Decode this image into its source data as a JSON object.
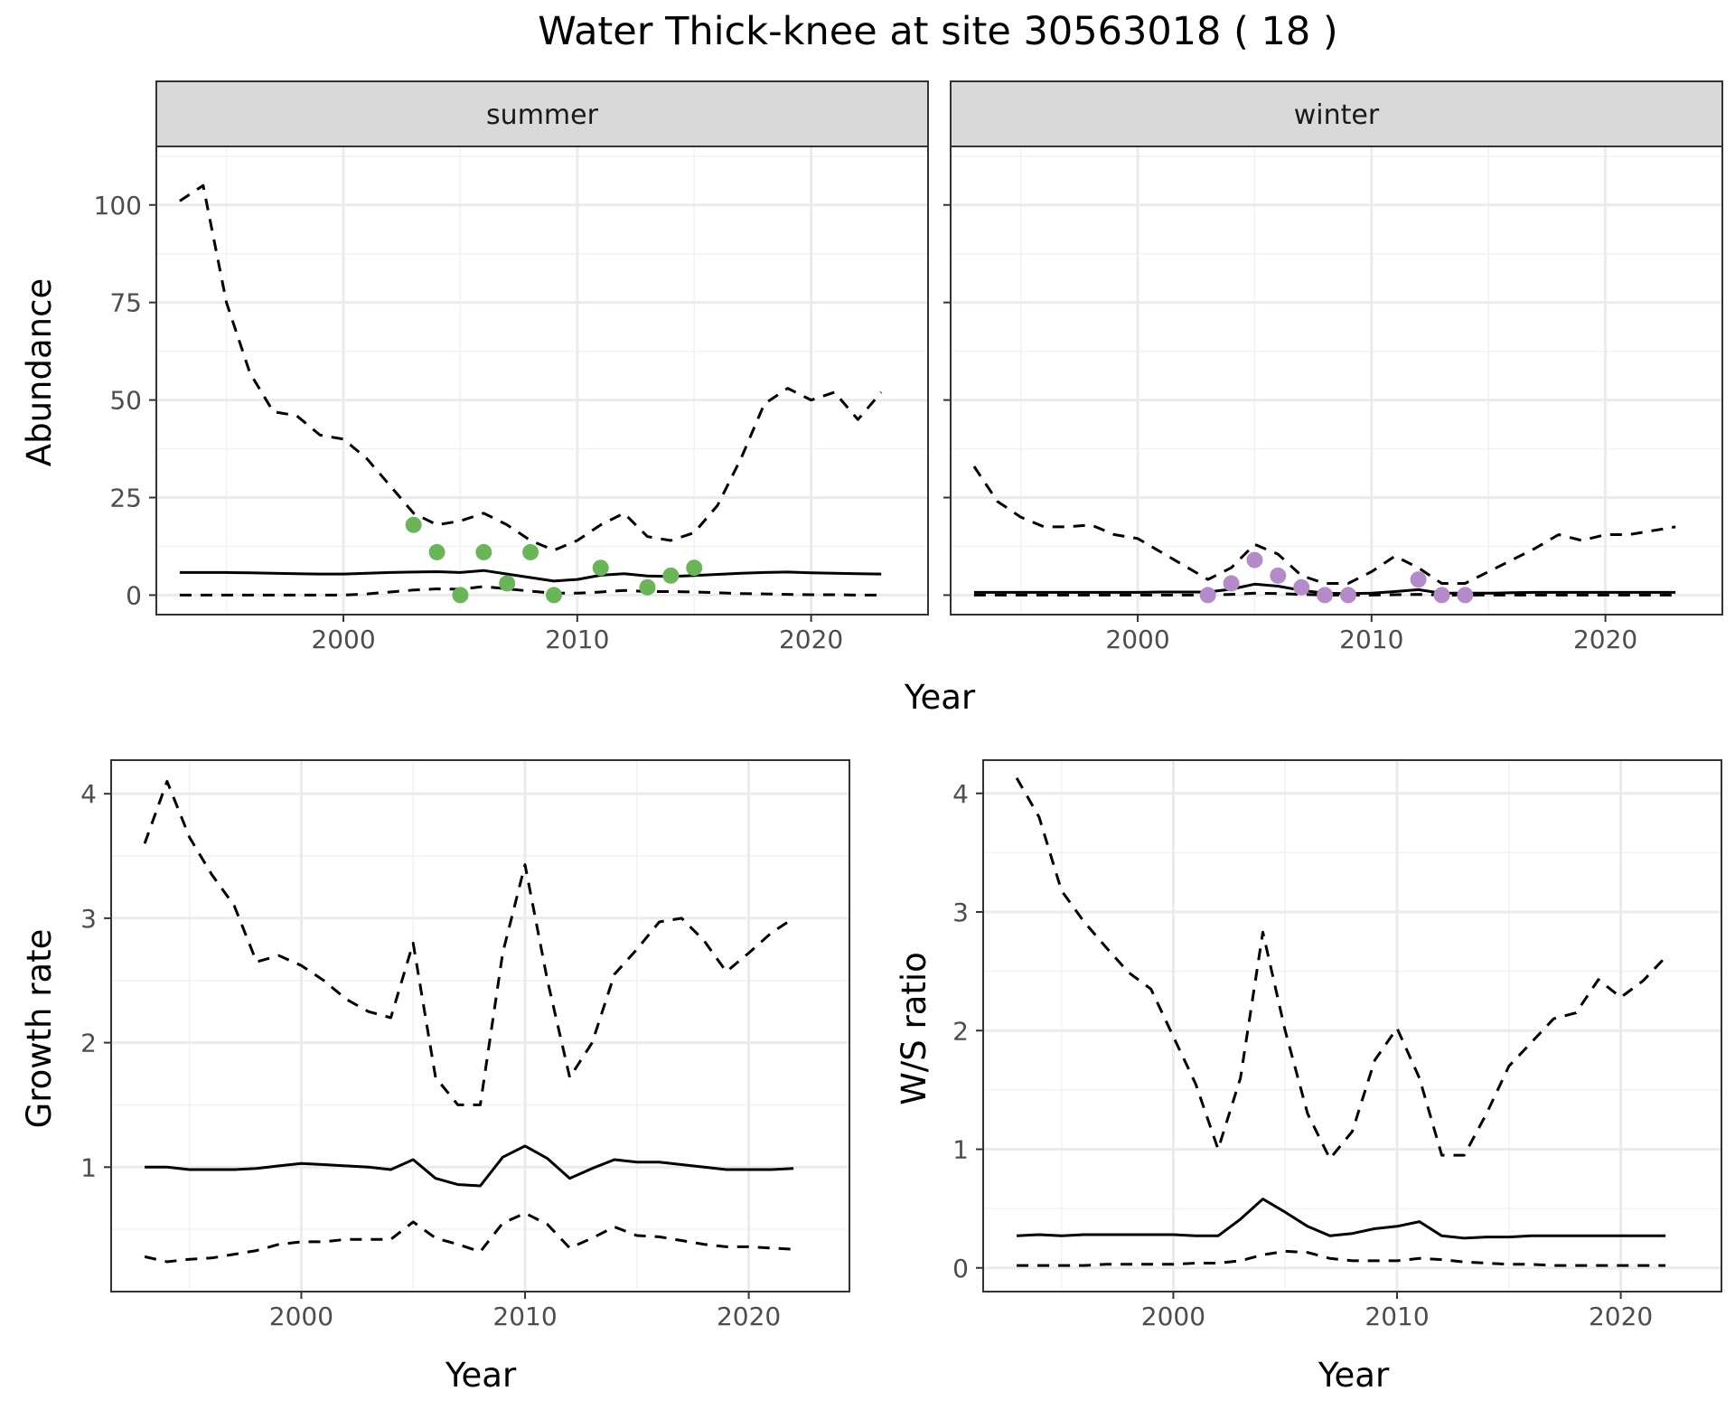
{
  "figure": {
    "title": "Water Thick-knee at site 30563018 ( 18 )"
  },
  "colors": {
    "summer_points": "#6ab558",
    "winter_points": "#b48ac9",
    "line": "#000000",
    "strip_fill": "#d9d9d9",
    "grid_major": "#ebebeb"
  },
  "chart_data": [
    {
      "id": "abundance_summer",
      "type": "line",
      "facet": "summer",
      "xlabel": "Year",
      "ylabel": "Abundance",
      "xlim": [
        1992,
        2025
      ],
      "ylim": [
        -5,
        115
      ],
      "xticks": [
        2000,
        2010,
        2020
      ],
      "yticks": [
        0,
        25,
        50,
        75,
        100
      ],
      "grid": true,
      "series": [
        {
          "role": "estimate",
          "style": "solid",
          "x": [
            1993,
            1994,
            1995,
            1996,
            1997,
            1998,
            1999,
            2000,
            2001,
            2002,
            2003,
            2004,
            2005,
            2006,
            2007,
            2008,
            2009,
            2010,
            2011,
            2012,
            2013,
            2014,
            2015,
            2016,
            2017,
            2018,
            2019,
            2020,
            2021,
            2022,
            2023
          ],
          "y": [
            5.8,
            5.8,
            5.8,
            5.7,
            5.6,
            5.5,
            5.4,
            5.4,
            5.6,
            5.8,
            5.9,
            6.0,
            5.8,
            6.3,
            5.4,
            4.5,
            3.6,
            4.0,
            5.1,
            5.5,
            4.9,
            4.8,
            5.0,
            5.3,
            5.6,
            5.8,
            5.9,
            5.7,
            5.6,
            5.5,
            5.4
          ]
        },
        {
          "role": "upper",
          "style": "dashed",
          "x": [
            1993,
            1994,
            1995,
            1996,
            1997,
            1998,
            1999,
            2000,
            2001,
            2002,
            2003,
            2004,
            2005,
            2006,
            2007,
            2008,
            2009,
            2010,
            2011,
            2012,
            2013,
            2014,
            2015,
            2016,
            2017,
            2018,
            2019,
            2020,
            2021,
            2022,
            2023
          ],
          "y": [
            101,
            105,
            75,
            57,
            47,
            46,
            41,
            40,
            35,
            28,
            21,
            18,
            19,
            21,
            18,
            14,
            11.5,
            14,
            18,
            21,
            15,
            14,
            16,
            23,
            35,
            49,
            53,
            50,
            52,
            45,
            52
          ]
        },
        {
          "role": "lower",
          "style": "dashed",
          "x": [
            1993,
            1994,
            1995,
            1996,
            1997,
            1998,
            1999,
            2000,
            2001,
            2002,
            2003,
            2004,
            2005,
            2006,
            2007,
            2008,
            2009,
            2010,
            2011,
            2012,
            2013,
            2014,
            2015,
            2016,
            2017,
            2018,
            2019,
            2020,
            2021,
            2022,
            2023
          ],
          "y": [
            0,
            0,
            0,
            0,
            0,
            0,
            0,
            0,
            0.3,
            0.8,
            1.3,
            1.6,
            1.5,
            2.2,
            1.6,
            1.0,
            0.5,
            0.5,
            0.8,
            1.2,
            0.9,
            0.9,
            0.8,
            0.6,
            0.4,
            0.3,
            0.2,
            0.1,
            0.1,
            0,
            0
          ]
        },
        {
          "role": "observed",
          "style": "points",
          "x": [
            2003,
            2004,
            2005,
            2006,
            2007,
            2008,
            2009,
            2011,
            2013,
            2014,
            2015
          ],
          "y": [
            18,
            11,
            0,
            11,
            3,
            11,
            0,
            7,
            2,
            5,
            7
          ]
        }
      ]
    },
    {
      "id": "abundance_winter",
      "type": "line",
      "facet": "winter",
      "xlabel": "Year",
      "ylabel": "Abundance",
      "xlim": [
        1992,
        2025
      ],
      "ylim": [
        -5,
        115
      ],
      "xticks": [
        2000,
        2010,
        2020
      ],
      "yticks": [
        0,
        25,
        50,
        75,
        100
      ],
      "grid": true,
      "series": [
        {
          "role": "estimate",
          "style": "solid",
          "x": [
            1993,
            1994,
            1995,
            1996,
            1997,
            1998,
            1999,
            2000,
            2001,
            2002,
            2003,
            2004,
            2005,
            2006,
            2007,
            2008,
            2009,
            2010,
            2011,
            2012,
            2013,
            2014,
            2015,
            2016,
            2017,
            2018,
            2019,
            2020,
            2021,
            2022,
            2023
          ],
          "y": [
            0.7,
            0.7,
            0.7,
            0.7,
            0.7,
            0.7,
            0.7,
            0.7,
            0.8,
            0.8,
            0.8,
            1.5,
            2.8,
            2.3,
            1.2,
            0.5,
            0.4,
            0.5,
            0.9,
            1.4,
            0.5,
            0.5,
            0.5,
            0.6,
            0.7,
            0.7,
            0.7,
            0.7,
            0.7,
            0.7,
            0.7
          ]
        },
        {
          "role": "upper",
          "style": "dashed",
          "x": [
            1993,
            1994,
            1995,
            1996,
            1997,
            1998,
            1999,
            2000,
            2001,
            2002,
            2003,
            2004,
            2005,
            2006,
            2007,
            2008,
            2009,
            2010,
            2011,
            2012,
            2013,
            2014,
            2015,
            2016,
            2017,
            2018,
            2019,
            2020,
            2021,
            2022,
            2023
          ],
          "y": [
            33,
            24,
            20,
            17.5,
            17.5,
            18,
            15.5,
            14.5,
            11,
            7.5,
            4,
            7,
            13,
            10.5,
            5,
            3,
            3,
            6,
            10,
            7,
            3,
            3,
            6,
            9,
            12,
            15.5,
            14,
            15.5,
            15.5,
            16.5,
            17.5
          ]
        },
        {
          "role": "lower",
          "style": "dashed",
          "x": [
            1993,
            1994,
            1995,
            1996,
            1997,
            1998,
            1999,
            2000,
            2001,
            2002,
            2003,
            2004,
            2005,
            2006,
            2007,
            2008,
            2009,
            2010,
            2011,
            2012,
            2013,
            2014,
            2015,
            2016,
            2017,
            2018,
            2019,
            2020,
            2021,
            2022,
            2023
          ],
          "y": [
            0,
            0,
            0,
            0,
            0,
            0,
            0,
            0,
            0,
            0,
            0,
            0.2,
            0.5,
            0.4,
            0.2,
            0,
            0,
            0,
            0.1,
            0.2,
            0,
            0,
            0,
            0,
            0,
            0,
            0,
            0,
            0,
            0,
            0
          ]
        },
        {
          "role": "observed",
          "style": "points",
          "x": [
            2003,
            2004,
            2005,
            2006,
            2007,
            2008,
            2009,
            2012,
            2013,
            2014
          ],
          "y": [
            0,
            3,
            9,
            5,
            2,
            0,
            0,
            4,
            0,
            0
          ]
        }
      ]
    },
    {
      "id": "growth_rate",
      "type": "line",
      "xlabel": "Year",
      "ylabel": "Growth rate",
      "xlim": [
        1991.5,
        2024.5
      ],
      "ylim": [
        0.0,
        4.27
      ],
      "xticks": [
        2000,
        2010,
        2020
      ],
      "yticks": [
        1,
        2,
        3,
        4
      ],
      "grid": true,
      "series": [
        {
          "role": "estimate",
          "style": "solid",
          "x": [
            1993,
            1994,
            1995,
            1996,
            1997,
            1998,
            1999,
            2000,
            2001,
            2002,
            2003,
            2004,
            2005,
            2006,
            2007,
            2008,
            2009,
            2010,
            2011,
            2012,
            2013,
            2014,
            2015,
            2016,
            2017,
            2018,
            2019,
            2020,
            2021,
            2022
          ],
          "y": [
            1.0,
            1.0,
            0.98,
            0.98,
            0.98,
            0.99,
            1.01,
            1.03,
            1.02,
            1.01,
            1.0,
            0.98,
            1.06,
            0.91,
            0.86,
            0.85,
            1.08,
            1.17,
            1.07,
            0.91,
            0.99,
            1.06,
            1.04,
            1.04,
            1.02,
            1.0,
            0.98,
            0.98,
            0.98,
            0.99
          ]
        },
        {
          "role": "upper",
          "style": "dashed",
          "x": [
            1993,
            1994,
            1995,
            1996,
            1997,
            1998,
            1999,
            2000,
            2001,
            2002,
            2003,
            2004,
            2005,
            2006,
            2007,
            2008,
            2009,
            2010,
            2011,
            2012,
            2013,
            2014,
            2015,
            2016,
            2017,
            2018,
            2019,
            2020,
            2021,
            2022
          ],
          "y": [
            3.6,
            4.1,
            3.65,
            3.35,
            3.1,
            2.65,
            2.7,
            2.62,
            2.5,
            2.35,
            2.25,
            2.2,
            2.8,
            1.72,
            1.5,
            1.5,
            2.72,
            3.43,
            2.5,
            1.72,
            2.0,
            2.55,
            2.75,
            2.97,
            3.0,
            2.82,
            2.57,
            2.72,
            2.88,
            3.0
          ]
        },
        {
          "role": "lower",
          "style": "dashed",
          "x": [
            1993,
            1994,
            1995,
            1996,
            1997,
            1998,
            1999,
            2000,
            2001,
            2002,
            2003,
            2004,
            2005,
            2006,
            2007,
            2008,
            2009,
            2010,
            2011,
            2012,
            2013,
            2014,
            2015,
            2016,
            2017,
            2018,
            2019,
            2020,
            2021,
            2022
          ],
          "y": [
            0.28,
            0.24,
            0.26,
            0.27,
            0.3,
            0.33,
            0.38,
            0.4,
            0.4,
            0.42,
            0.42,
            0.42,
            0.56,
            0.43,
            0.38,
            0.32,
            0.55,
            0.63,
            0.54,
            0.35,
            0.43,
            0.52,
            0.45,
            0.44,
            0.41,
            0.38,
            0.36,
            0.36,
            0.35,
            0.34
          ]
        }
      ]
    },
    {
      "id": "ws_ratio",
      "type": "line",
      "xlabel": "Year",
      "ylabel": "W/S ratio",
      "xlim": [
        1991.5,
        2024.5
      ],
      "ylim": [
        -0.2,
        4.28
      ],
      "xticks": [
        2000,
        2010,
        2020
      ],
      "yticks": [
        0,
        1,
        2,
        3,
        4
      ],
      "grid": true,
      "series": [
        {
          "role": "estimate",
          "style": "solid",
          "x": [
            1993,
            1994,
            1995,
            1996,
            1997,
            1998,
            1999,
            2000,
            2001,
            2002,
            2003,
            2004,
            2005,
            2006,
            2007,
            2008,
            2009,
            2010,
            2011,
            2012,
            2013,
            2014,
            2015,
            2016,
            2017,
            2018,
            2019,
            2020,
            2021,
            2022
          ],
          "y": [
            0.27,
            0.28,
            0.27,
            0.28,
            0.28,
            0.28,
            0.28,
            0.28,
            0.27,
            0.27,
            0.41,
            0.58,
            0.47,
            0.35,
            0.27,
            0.29,
            0.33,
            0.35,
            0.39,
            0.27,
            0.25,
            0.26,
            0.26,
            0.27,
            0.27,
            0.27,
            0.27,
            0.27,
            0.27,
            0.27
          ]
        },
        {
          "role": "upper",
          "style": "dashed",
          "x": [
            1993,
            1994,
            1995,
            1996,
            1997,
            1998,
            1999,
            2000,
            2001,
            2002,
            2003,
            2004,
            2005,
            2006,
            2007,
            2008,
            2009,
            2010,
            2011,
            2012,
            2013,
            2014,
            2015,
            2016,
            2017,
            2018,
            2019,
            2020,
            2021,
            2022
          ],
          "y": [
            4.13,
            3.8,
            3.18,
            2.92,
            2.7,
            2.49,
            2.35,
            1.95,
            1.55,
            1.0,
            1.6,
            2.83,
            2.0,
            1.3,
            0.92,
            1.15,
            1.75,
            2.02,
            1.6,
            0.95,
            0.95,
            1.3,
            1.7,
            1.9,
            2.1,
            2.15,
            2.43,
            2.28,
            2.42,
            2.62
          ]
        },
        {
          "role": "lower",
          "style": "dashed",
          "x": [
            1993,
            1994,
            1995,
            1996,
            1997,
            1998,
            1999,
            2000,
            2001,
            2002,
            2003,
            2004,
            2005,
            2006,
            2007,
            2008,
            2009,
            2010,
            2011,
            2012,
            2013,
            2014,
            2015,
            2016,
            2017,
            2018,
            2019,
            2020,
            2021,
            2022
          ],
          "y": [
            0.02,
            0.02,
            0.02,
            0.02,
            0.03,
            0.03,
            0.03,
            0.03,
            0.04,
            0.04,
            0.06,
            0.11,
            0.14,
            0.13,
            0.08,
            0.06,
            0.06,
            0.06,
            0.08,
            0.07,
            0.05,
            0.04,
            0.03,
            0.03,
            0.02,
            0.02,
            0.02,
            0.02,
            0.02,
            0.02
          ]
        }
      ]
    }
  ]
}
